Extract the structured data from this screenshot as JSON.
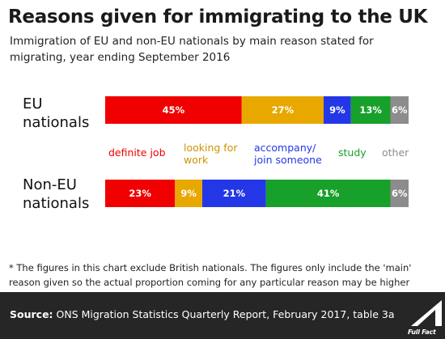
{
  "title": "Reasons given for immigrating to the UK",
  "subtitle": "Immigration of EU and non-EU nationals by main reason stated for migrating, year ending September 2016",
  "footnote": "* The figures in this chart exclude British nationals. The figures only include the 'main' reason given so the actual proportion coming for any particular reason may be higher",
  "source": {
    "label": "Source:",
    "text": " ONS Migration Statistics Quarterly Report, February 2017, table 3a"
  },
  "logo": {
    "text": "Full Fact",
    "icon": "full-fact-logo-icon"
  },
  "colors": {
    "definite_job": "#f00000",
    "looking_for_work": "#e8a800",
    "accompany": "#2437e6",
    "study": "#17a02a",
    "other": "#8c8c8c"
  },
  "chart_data": {
    "type": "bar",
    "orientation": "horizontal",
    "stacked": true,
    "categories": [
      "EU nationals",
      "Non-EU nationals"
    ],
    "series": [
      {
        "name": "definite job",
        "values": [
          45,
          23
        ]
      },
      {
        "name": "looking for work",
        "values": [
          27,
          9
        ]
      },
      {
        "name": "accompany/ join someone",
        "values": [
          9,
          21
        ]
      },
      {
        "name": "study",
        "values": [
          13,
          41
        ]
      },
      {
        "name": "other",
        "values": [
          6,
          6
        ]
      }
    ],
    "data_labels": [
      [
        "45%",
        "27%",
        "9%",
        "13%",
        "6%"
      ],
      [
        "23%",
        "9%",
        "21%",
        "41%",
        "6%"
      ]
    ],
    "legend_position": "between bars",
    "grid": false
  }
}
